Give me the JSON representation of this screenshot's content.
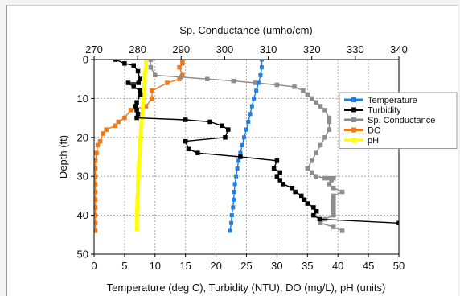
{
  "chart_data": {
    "type": "line",
    "orientation": "depth-profile",
    "title": "",
    "top_axis": {
      "label": "Sp. Conductance (umho/cm)",
      "range": [
        270,
        340
      ],
      "ticks": [
        270,
        280,
        290,
        300,
        310,
        320,
        330,
        340
      ]
    },
    "bottom_axis": {
      "label": "Temperature (deg C), Turbidity (NTU), DO (mg/L), pH (units)",
      "range": [
        0,
        50
      ],
      "ticks": [
        0,
        5,
        10,
        15,
        20,
        25,
        30,
        35,
        40,
        45,
        50
      ]
    },
    "y_axis": {
      "label": "Depth (ft)",
      "range": [
        0,
        50
      ],
      "inverted": true,
      "ticks": [
        0,
        10,
        20,
        30,
        40,
        50
      ]
    },
    "grid": true,
    "legend_position": "right",
    "series": [
      {
        "name": "Temperature",
        "axis": "bottom",
        "color": "#1e7fe8",
        "points": [
          [
            27.5,
            0
          ],
          [
            27.5,
            2
          ],
          [
            27.3,
            4
          ],
          [
            27,
            6
          ],
          [
            26.6,
            8
          ],
          [
            26.2,
            10
          ],
          [
            25.9,
            12
          ],
          [
            25.6,
            14
          ],
          [
            25.3,
            16
          ],
          [
            25,
            18
          ],
          [
            24.6,
            20
          ],
          [
            24.3,
            22
          ],
          [
            24,
            24
          ],
          [
            23.7,
            26
          ],
          [
            23.5,
            28
          ],
          [
            23.3,
            30
          ],
          [
            23.1,
            32
          ],
          [
            23,
            34
          ],
          [
            22.9,
            36
          ],
          [
            22.8,
            38
          ],
          [
            22.6,
            40
          ],
          [
            22.5,
            42
          ],
          [
            22.3,
            44
          ]
        ]
      },
      {
        "name": "Turbidity",
        "axis": "bottom",
        "color": "#000000",
        "points": [
          [
            3.5,
            0
          ],
          [
            5,
            1
          ],
          [
            6.5,
            1.5
          ],
          [
            7.2,
            3
          ],
          [
            7.5,
            5
          ],
          [
            7.3,
            6
          ],
          [
            5.6,
            6
          ],
          [
            6.5,
            7
          ],
          [
            7.5,
            8
          ],
          [
            7.6,
            9
          ],
          [
            7,
            11
          ],
          [
            6.8,
            12
          ],
          [
            7,
            13
          ],
          [
            7.2,
            14
          ],
          [
            7,
            15
          ],
          [
            15,
            15.5
          ],
          [
            19,
            16
          ],
          [
            21,
            17
          ],
          [
            22,
            18
          ],
          [
            21.5,
            20
          ],
          [
            15,
            21
          ],
          [
            15.5,
            23
          ],
          [
            17,
            24
          ],
          [
            24,
            25
          ],
          [
            30,
            26
          ],
          [
            29.5,
            28
          ],
          [
            30.5,
            29
          ],
          [
            30,
            30
          ],
          [
            30.5,
            31
          ],
          [
            31,
            32
          ],
          [
            32.5,
            33
          ],
          [
            33,
            34
          ],
          [
            34,
            35
          ],
          [
            34.5,
            36
          ],
          [
            35,
            37
          ],
          [
            36,
            38
          ],
          [
            36.5,
            39
          ],
          [
            36,
            40
          ],
          [
            37,
            41
          ],
          [
            50,
            42
          ]
        ]
      },
      {
        "name": "Sp. Conductance",
        "axis": "top",
        "color": "#8c8c8c",
        "points": [
          [
            283,
            0
          ],
          [
            283,
            2
          ],
          [
            284,
            4
          ],
          [
            290,
            4.5
          ],
          [
            296,
            5
          ],
          [
            302,
            5.5
          ],
          [
            307,
            6
          ],
          [
            312,
            6.5
          ],
          [
            316,
            7
          ],
          [
            318,
            8
          ],
          [
            319,
            9
          ],
          [
            320,
            10
          ],
          [
            321,
            11
          ],
          [
            322,
            12
          ],
          [
            323,
            13
          ],
          [
            324,
            15
          ],
          [
            324,
            16
          ],
          [
            324,
            18
          ],
          [
            323,
            20
          ],
          [
            322,
            22
          ],
          [
            321,
            24
          ],
          [
            320,
            26
          ],
          [
            319,
            28
          ],
          [
            320,
            29
          ],
          [
            321,
            30
          ],
          [
            323,
            30.5
          ],
          [
            324,
            30.5
          ],
          [
            325,
            30.5
          ],
          [
            324.5,
            31
          ],
          [
            324,
            32
          ],
          [
            325,
            33
          ],
          [
            327,
            34
          ],
          [
            325,
            35
          ],
          [
            325,
            36
          ],
          [
            325,
            37
          ],
          [
            325,
            38
          ],
          [
            325,
            39
          ],
          [
            325,
            40
          ],
          [
            323,
            41
          ],
          [
            322,
            42
          ],
          [
            325,
            43
          ],
          [
            327,
            44
          ]
        ]
      },
      {
        "name": "DO",
        "axis": "bottom",
        "color": "#f07818",
        "points": [
          [
            14.5,
            0
          ],
          [
            14.5,
            1
          ],
          [
            14,
            2
          ],
          [
            14.5,
            4
          ],
          [
            14,
            5
          ],
          [
            12,
            6
          ],
          [
            9.5,
            8
          ],
          [
            9.5,
            10
          ],
          [
            8.5,
            12
          ],
          [
            6,
            13
          ],
          [
            5,
            15
          ],
          [
            4,
            16
          ],
          [
            3.5,
            17
          ],
          [
            2,
            18
          ],
          [
            1.5,
            19
          ],
          [
            1,
            21
          ],
          [
            0.6,
            22
          ],
          [
            0.4,
            24
          ],
          [
            0.2,
            26
          ],
          [
            0.2,
            28
          ],
          [
            0.2,
            30
          ],
          [
            0.2,
            32
          ],
          [
            0.2,
            34
          ],
          [
            0.2,
            36
          ],
          [
            0.2,
            38
          ],
          [
            0.2,
            40
          ],
          [
            0.2,
            42
          ],
          [
            0.2,
            44
          ]
        ]
      },
      {
        "name": "pH",
        "axis": "bottom",
        "color": "#ffff00",
        "points": [
          [
            8.5,
            0
          ],
          [
            8.5,
            2
          ],
          [
            8.3,
            4
          ],
          [
            8.3,
            6
          ],
          [
            8.2,
            8
          ],
          [
            8.1,
            10
          ],
          [
            8,
            12
          ],
          [
            8,
            14
          ],
          [
            7.8,
            16
          ],
          [
            7.7,
            18
          ],
          [
            7.6,
            20
          ],
          [
            7.5,
            22
          ],
          [
            7.5,
            24
          ],
          [
            7.4,
            26
          ],
          [
            7.3,
            28
          ],
          [
            7.3,
            30
          ],
          [
            7.2,
            32
          ],
          [
            7.2,
            34
          ],
          [
            7.1,
            36
          ],
          [
            7.1,
            38
          ],
          [
            7,
            40
          ],
          [
            7,
            42
          ],
          [
            7,
            44
          ]
        ]
      }
    ]
  }
}
